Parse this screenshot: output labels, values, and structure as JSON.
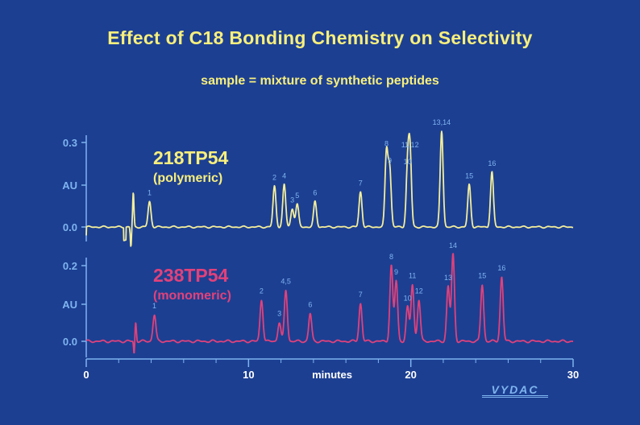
{
  "title": "Effect of C18 Bonding Chemistry on Selectivity",
  "subtitle": "sample = mixture of synthetic peptides",
  "colors": {
    "background": "#1c3f92",
    "title": "#f8ef7c",
    "axis": "#7fb4ee",
    "polymeric": "#f4ee9a",
    "monomeric": "#e2417a"
  },
  "logo_text": "VYDAC",
  "chart_data": [
    {
      "type": "line",
      "name": "218TP54",
      "subname": "(polymeric)",
      "ylabel": "AU",
      "ytick_labels": [
        "0.3",
        "AU",
        "0.0"
      ],
      "ylim": [
        -0.05,
        0.33
      ],
      "xlim": [
        0,
        30
      ],
      "baseline": 0.0,
      "peaks": [
        {
          "label": "1",
          "t": 3.9,
          "h": 0.09
        },
        {
          "label": "2",
          "t": 11.6,
          "h": 0.145
        },
        {
          "label": "4",
          "t": 12.2,
          "h": 0.15
        },
        {
          "label": "3",
          "t": 12.7,
          "h": 0.065
        },
        {
          "label": "5",
          "t": 13.0,
          "h": 0.08
        },
        {
          "label": "6",
          "t": 14.1,
          "h": 0.09
        },
        {
          "label": "7",
          "t": 16.9,
          "h": 0.125
        },
        {
          "label": "8",
          "t": 18.5,
          "h": 0.265
        },
        {
          "label": "9",
          "t": 18.7,
          "h": 0.205
        },
        {
          "label": "10",
          "t": 19.8,
          "h": 0.2
        },
        {
          "label": "11,12",
          "t": 19.95,
          "h": 0.26
        },
        {
          "label": "13,14",
          "t": 21.9,
          "h": 0.34
        },
        {
          "label": "15",
          "t": 23.6,
          "h": 0.15
        },
        {
          "label": "16",
          "t": 25.0,
          "h": 0.195
        }
      ]
    },
    {
      "type": "line",
      "name": "238TP54",
      "subname": "(monomeric)",
      "ylabel": "AU",
      "ytick_labels": [
        "0.2",
        "AU",
        "0.0"
      ],
      "ylim": [
        -0.04,
        0.22
      ],
      "xlim": [
        0,
        30
      ],
      "baseline": 0.0,
      "peaks": [
        {
          "label": "1",
          "t": 4.2,
          "h": 0.07
        },
        {
          "label": "2",
          "t": 10.8,
          "h": 0.11
        },
        {
          "label": "3",
          "t": 11.9,
          "h": 0.05
        },
        {
          "label": "4,5",
          "t": 12.3,
          "h": 0.135
        },
        {
          "label": "6",
          "t": 13.8,
          "h": 0.073
        },
        {
          "label": "7",
          "t": 16.9,
          "h": 0.1
        },
        {
          "label": "8",
          "t": 18.8,
          "h": 0.2
        },
        {
          "label": "9",
          "t": 19.1,
          "h": 0.16
        },
        {
          "label": "10",
          "t": 19.8,
          "h": 0.09
        },
        {
          "label": "11",
          "t": 20.1,
          "h": 0.15
        },
        {
          "label": "12",
          "t": 20.5,
          "h": 0.11
        },
        {
          "label": "13",
          "t": 22.3,
          "h": 0.145
        },
        {
          "label": "14",
          "t": 22.6,
          "h": 0.23
        },
        {
          "label": "15",
          "t": 24.4,
          "h": 0.15
        },
        {
          "label": "16",
          "t": 25.6,
          "h": 0.17
        }
      ]
    }
  ],
  "x_axis": {
    "label": "minutes",
    "ticks": [
      0,
      10,
      20,
      30
    ]
  }
}
